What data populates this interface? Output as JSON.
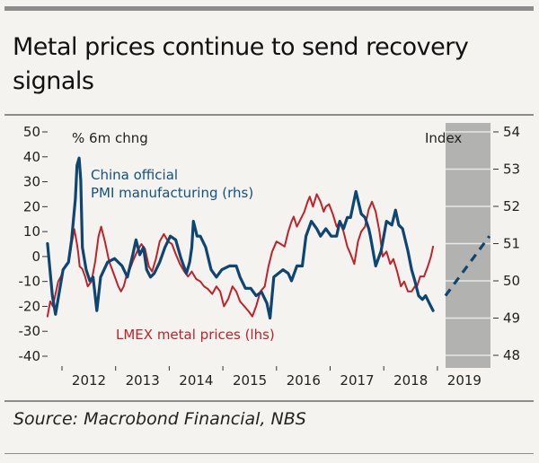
{
  "header": {
    "title": "Metal prices continue to send recovery signals"
  },
  "footer": {
    "source": "Source: Macrobond Financial, NBS"
  },
  "chart_data": {
    "type": "line",
    "title": "Metal prices continue to send recovery signals",
    "left_axis": {
      "label": "% 6m chng",
      "ticks": [
        50,
        40,
        30,
        20,
        10,
        0,
        -10,
        -20,
        -30,
        -40
      ],
      "tick_labels": [
        "50",
        "40",
        "30",
        "20",
        "10",
        "0",
        "-10",
        "-20",
        "-30",
        "-40"
      ],
      "range": [
        -40,
        50
      ]
    },
    "right_axis": {
      "label": "Index",
      "ticks": [
        54,
        53,
        52,
        51,
        50,
        49,
        48
      ],
      "tick_labels": [
        "54",
        "53",
        "52",
        "51",
        "50",
        "49",
        "48"
      ],
      "range": [
        48,
        54
      ]
    },
    "x_axis": {
      "tick_labels": [
        "2012",
        "2013",
        "2014",
        "2015",
        "2016",
        "2017",
        "2018",
        "2019"
      ],
      "range": [
        2011.7,
        2019.97
      ]
    },
    "forecast_shading": {
      "from": 2019.12,
      "to": 2019.97,
      "color": "#b2b2b0"
    },
    "series": [
      {
        "name": "China official PMI manufacturing (rhs)",
        "label_lines": [
          "China official",
          "PMI manufacturing (rhs)"
        ],
        "axis": "right",
        "color": "#0e4571",
        "x": [
          2011.73,
          2011.82,
          2011.88,
          2011.95,
          2012.02,
          2012.12,
          2012.18,
          2012.25,
          2012.28,
          2012.32,
          2012.35,
          2012.38,
          2012.45,
          2012.52,
          2012.58,
          2012.65,
          2012.72,
          2012.85,
          2012.98,
          2013.12,
          2013.22,
          2013.32,
          2013.38,
          2013.45,
          2013.52,
          2013.58,
          2013.65,
          2013.72,
          2013.82,
          2013.92,
          2014.02,
          2014.12,
          2014.22,
          2014.32,
          2014.38,
          2014.42,
          2014.45,
          2014.52,
          2014.58,
          2014.68,
          2014.78,
          2014.88,
          2014.98,
          2015.12,
          2015.25,
          2015.32,
          2015.42,
          2015.52,
          2015.62,
          2015.72,
          2015.82,
          2015.88,
          2015.95,
          2016.12,
          2016.22,
          2016.28,
          2016.38,
          2016.48,
          2016.55,
          2016.65,
          2016.75,
          2016.82,
          2016.92,
          2017.02,
          2017.12,
          2017.18,
          2017.25,
          2017.32,
          2017.38,
          2017.48,
          2017.58,
          2017.65,
          2017.72,
          2017.75,
          2017.85,
          2017.95,
          2018.05,
          2018.15,
          2018.22,
          2018.28,
          2018.35,
          2018.45,
          2018.52,
          2018.58,
          2018.65,
          2018.72,
          2018.78,
          2018.85,
          2018.92
        ],
        "values": [
          51.0,
          49.6,
          49.1,
          49.7,
          50.3,
          50.5,
          51.1,
          52.2,
          53.1,
          53.3,
          52.7,
          50.9,
          50.3,
          50.0,
          50.1,
          49.2,
          50.1,
          50.5,
          50.6,
          50.4,
          50.1,
          50.7,
          51.1,
          50.7,
          50.9,
          50.3,
          50.1,
          50.2,
          50.5,
          50.9,
          51.2,
          51.1,
          50.6,
          50.2,
          50.5,
          50.9,
          51.6,
          51.2,
          51.2,
          50.9,
          50.3,
          50.1,
          50.3,
          50.4,
          50.4,
          50.1,
          49.8,
          49.8,
          49.6,
          49.7,
          49.4,
          49.0,
          50.1,
          50.3,
          50.2,
          50.0,
          50.4,
          50.4,
          51.2,
          51.6,
          51.4,
          51.2,
          51.4,
          51.2,
          51.2,
          51.6,
          51.4,
          51.7,
          51.7,
          52.4,
          51.8,
          51.7,
          51.4,
          51.2,
          50.4,
          50.8,
          51.6,
          51.5,
          51.9,
          51.5,
          51.4,
          50.8,
          50.3,
          50.0,
          49.6,
          49.5,
          49.6,
          49.4,
          49.2
        ]
      },
      {
        "name": "China official PMI forecast",
        "axis": "right",
        "style": "dashed",
        "color": "#0e4571",
        "x": [
          2019.15,
          2019.97
        ],
        "values": [
          49.6,
          51.2
        ]
      },
      {
        "name": "LMEX metal prices (lhs)",
        "label_lines": [
          "LMEX metal prices (lhs)"
        ],
        "axis": "left",
        "color": "#c0222b",
        "x": [
          2011.73,
          2011.78,
          2011.83,
          2011.88,
          2011.93,
          2011.98,
          2012.03,
          2012.08,
          2012.13,
          2012.18,
          2012.23,
          2012.28,
          2012.3,
          2012.33,
          2012.38,
          2012.43,
          2012.48,
          2012.55,
          2012.62,
          2012.68,
          2012.73,
          2012.8,
          2012.88,
          2012.95,
          2013.0,
          2013.05,
          2013.1,
          2013.15,
          2013.2,
          2013.25,
          2013.32,
          2013.4,
          2013.48,
          2013.55,
          2013.62,
          2013.68,
          2013.75,
          2013.82,
          2013.9,
          2013.98,
          2014.05,
          2014.12,
          2014.2,
          2014.28,
          2014.35,
          2014.42,
          2014.5,
          2014.58,
          2014.65,
          2014.72,
          2014.8,
          2014.88,
          2014.95,
          2015.02,
          2015.1,
          2015.18,
          2015.25,
          2015.32,
          2015.4,
          2015.48,
          2015.55,
          2015.62,
          2015.7,
          2015.78,
          2015.85,
          2015.92,
          2016.0,
          2016.08,
          2016.15,
          2016.22,
          2016.28,
          2016.32,
          2016.38,
          2016.45,
          2016.52,
          2016.58,
          2016.62,
          2016.68,
          2016.75,
          2016.82,
          2016.88,
          2016.92,
          2016.98,
          2017.05,
          2017.12,
          2017.18,
          2017.25,
          2017.32,
          2017.38,
          2017.45,
          2017.52,
          2017.58,
          2017.65,
          2017.72,
          2017.78,
          2017.85,
          2017.92,
          2017.98,
          2018.05,
          2018.12,
          2018.18,
          2018.25,
          2018.32,
          2018.38,
          2018.45,
          2018.52,
          2018.58,
          2018.62,
          2018.68,
          2018.75,
          2018.82,
          2018.88,
          2018.92
        ],
        "values": [
          -24,
          -18,
          -20,
          -15,
          -10,
          -8,
          -5,
          -3,
          -2,
          5,
          11,
          5,
          2,
          -4,
          -5,
          -8,
          -12,
          -10,
          -2,
          8,
          12,
          6,
          -2,
          -6,
          -9,
          -12,
          -14,
          -12,
          -8,
          -6,
          -2,
          2,
          5,
          3,
          -4,
          -6,
          -1,
          6,
          9,
          6,
          5,
          1,
          -3,
          -6,
          -8,
          -6,
          -9,
          -10,
          -12,
          -13,
          -15,
          -12,
          -14,
          -20,
          -17,
          -12,
          -14,
          -18,
          -20,
          -22,
          -24,
          -20,
          -14,
          -12,
          -4,
          2,
          6,
          5,
          4,
          10,
          14,
          16,
          12,
          15,
          18,
          22,
          24,
          20,
          25,
          22,
          18,
          20,
          21,
          17,
          12,
          14,
          10,
          4,
          1,
          -3,
          6,
          10,
          12,
          19,
          22,
          18,
          10,
          0,
          2,
          -3,
          -1,
          -6,
          -12,
          -10,
          -14,
          -14,
          -12,
          -12,
          -8,
          -8,
          -4,
          0,
          4
        ]
      }
    ],
    "legend": "inline-labels",
    "grid": "horizontal lines in shaded forecast area only"
  }
}
